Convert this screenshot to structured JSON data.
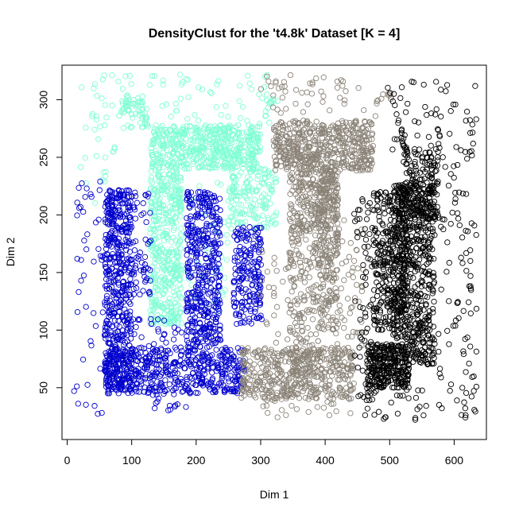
{
  "chart_data": {
    "type": "scatter",
    "title": "DensityClust for the 't4.8k' Dataset [K = 4]",
    "xlabel": "Dim 1",
    "ylabel": "Dim 2",
    "xlim": [
      -8,
      650
    ],
    "ylim": [
      5,
      330
    ],
    "xticks": [
      0,
      100,
      200,
      300,
      400,
      500,
      600
    ],
    "yticks": [
      50,
      100,
      150,
      200,
      250,
      300
    ],
    "grid": false,
    "legend": "none",
    "marker": "open-circle",
    "clusters": [
      {
        "color": "#7FFFD4",
        "regions": [
          {
            "x": [
              130,
              300
            ],
            "y": [
              240,
              278
            ],
            "n": 520
          },
          {
            "x": [
              128,
              178
            ],
            "y": [
              105,
              240
            ],
            "n": 420
          },
          {
            "x": [
              250,
              325
            ],
            "y": [
              188,
              240
            ],
            "n": 160
          },
          {
            "x": [
              85,
              125
            ],
            "y": [
              275,
              305
            ],
            "n": 35
          },
          {
            "x": [
              20,
              320
            ],
            "y": [
              280,
              322
            ],
            "n": 70
          },
          {
            "x": [
              18,
              60
            ],
            "y": [
              210,
              290
            ],
            "n": 18
          },
          {
            "x": [
              160,
              250
            ],
            "y": [
              110,
              240
            ],
            "n": 40
          }
        ],
        "curves": [
          {
            "points": [
              [
                65,
                235
              ],
              [
                80,
                285
              ],
              [
                95,
                300
              ],
              [
                112,
                295
              ],
              [
                125,
                278
              ]
            ],
            "n": 30
          },
          {
            "points": [
              [
                296,
                275
              ],
              [
                310,
                295
              ],
              [
                325,
                300
              ]
            ],
            "n": 12
          }
        ]
      },
      {
        "color": "#0000CD",
        "regions": [
          {
            "x": [
              58,
              100
            ],
            "y": [
              48,
              222
            ],
            "n": 520
          },
          {
            "x": [
              58,
              275
            ],
            "y": [
              45,
              85
            ],
            "n": 520
          },
          {
            "x": [
              185,
              238
            ],
            "y": [
              85,
              220
            ],
            "n": 430
          },
          {
            "x": [
              258,
              302
            ],
            "y": [
              105,
              190
            ],
            "n": 190
          },
          {
            "x": [
              100,
              130
            ],
            "y": [
              130,
              222
            ],
            "n": 60
          },
          {
            "x": [
              10,
              58
            ],
            "y": [
              22,
              230
            ],
            "n": 45
          },
          {
            "x": [
              100,
              185
            ],
            "y": [
              85,
              110
            ],
            "n": 25
          },
          {
            "x": [
              130,
              185
            ],
            "y": [
              30,
              45
            ],
            "n": 15
          }
        ],
        "curves": []
      },
      {
        "color": "#8B8378",
        "regions": [
          {
            "x": [
              320,
              475
            ],
            "y": [
              238,
              282
            ],
            "n": 520
          },
          {
            "x": [
              345,
              420
            ],
            "y": [
              185,
              238
            ],
            "n": 220
          },
          {
            "x": [
              390,
              420
            ],
            "y": [
              100,
              238
            ],
            "n": 220
          },
          {
            "x": [
              345,
              390
            ],
            "y": [
              60,
              200
            ],
            "n": 200
          },
          {
            "x": [
              270,
              445
            ],
            "y": [
              40,
              85
            ],
            "n": 480
          },
          {
            "x": [
              415,
              460
            ],
            "y": [
              85,
              200
            ],
            "n": 60
          },
          {
            "x": [
              300,
              460
            ],
            "y": [
              285,
              322
            ],
            "n": 45
          },
          {
            "x": [
              300,
              345
            ],
            "y": [
              85,
              180
            ],
            "n": 25
          },
          {
            "x": [
              280,
              440
            ],
            "y": [
              22,
              40
            ],
            "n": 20
          }
        ],
        "curves": [
          {
            "points": [
              [
                470,
                275
              ],
              [
                480,
                295
              ],
              [
                495,
                305
              ],
              [
                510,
                300
              ]
            ],
            "n": 14
          }
        ]
      },
      {
        "color": "#000000",
        "regions": [
          {
            "x": [
              465,
              530
            ],
            "y": [
              50,
              88
            ],
            "n": 300
          },
          {
            "x": [
              505,
              570
            ],
            "y": [
              70,
              230
            ],
            "n": 620
          },
          {
            "x": [
              475,
              525
            ],
            "y": [
              100,
              220
            ],
            "n": 300
          },
          {
            "x": [
              520,
              575
            ],
            "y": [
              195,
              255
            ],
            "n": 160
          },
          {
            "x": [
              445,
              475
            ],
            "y": [
              40,
              220
            ],
            "n": 60
          },
          {
            "x": [
              575,
              635
            ],
            "y": [
              22,
              315
            ],
            "n": 120
          },
          {
            "x": [
              500,
              580
            ],
            "y": [
              255,
              320
            ],
            "n": 30
          },
          {
            "x": [
              455,
              560
            ],
            "y": [
              22,
              48
            ],
            "n": 30
          }
        ],
        "curves": [
          {
            "points": [
              [
                500,
                310
              ],
              [
                512,
                290
              ],
              [
                518,
                270
              ],
              [
                525,
                255
              ]
            ],
            "n": 18
          }
        ]
      }
    ]
  }
}
